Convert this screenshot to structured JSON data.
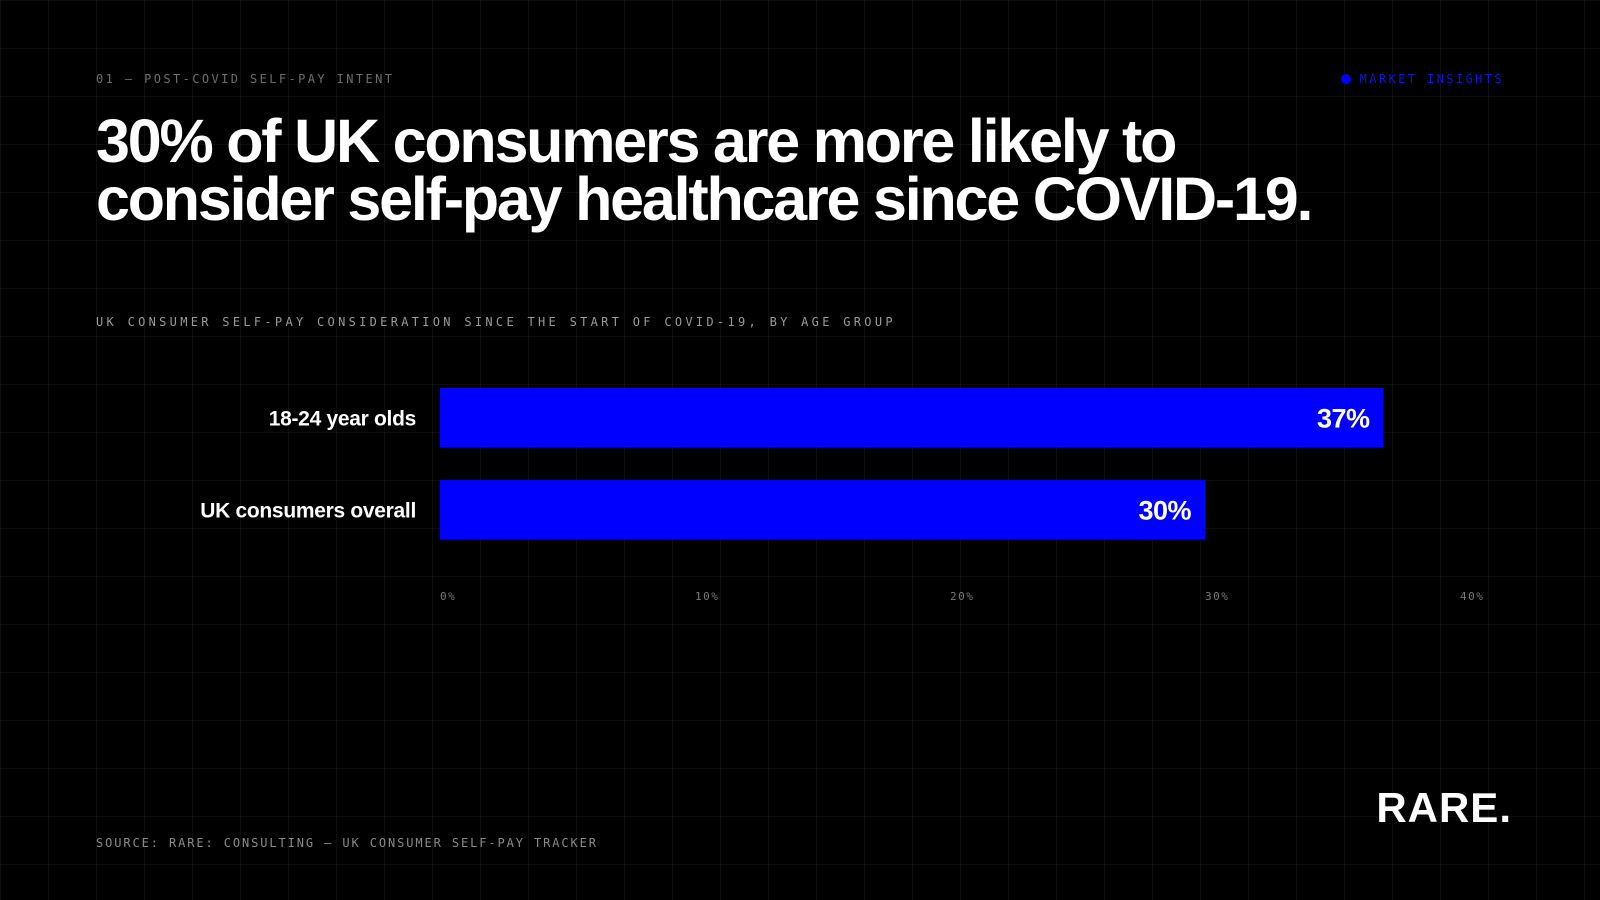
{
  "eyebrow": "01 — POST-COVID SELF-PAY INTENT",
  "tag": {
    "label": "MARKET INSIGHTS",
    "icon": "dot-icon",
    "color": "#0000ff"
  },
  "headline": "30% of UK consumers are more likely to consider self-pay healthcare since COVID-19.",
  "source": "SOURCE: RARE: CONSULTING — UK CONSUMER SELF-PAY TRACKER",
  "logo": "RARE.",
  "colors": {
    "background": "#000000",
    "bar": "#0000ff",
    "text": "#ffffff"
  },
  "chart_data": {
    "type": "bar",
    "orientation": "horizontal",
    "title": "UK CONSUMER SELF-PAY CONSIDERATION SINCE THE START OF COVID-19, BY AGE GROUP",
    "categories": [
      "18-24 year olds",
      "UK consumers overall"
    ],
    "values": [
      37,
      30
    ],
    "data_labels": [
      "37%",
      "30%"
    ],
    "xlim": [
      0,
      40
    ],
    "xticks": [
      0,
      10,
      20,
      30,
      40
    ],
    "xtick_labels": [
      "0%",
      "10%",
      "20%",
      "30%",
      "40%"
    ],
    "xlabel": "",
    "ylabel": "",
    "grid": false,
    "legend": "none"
  }
}
